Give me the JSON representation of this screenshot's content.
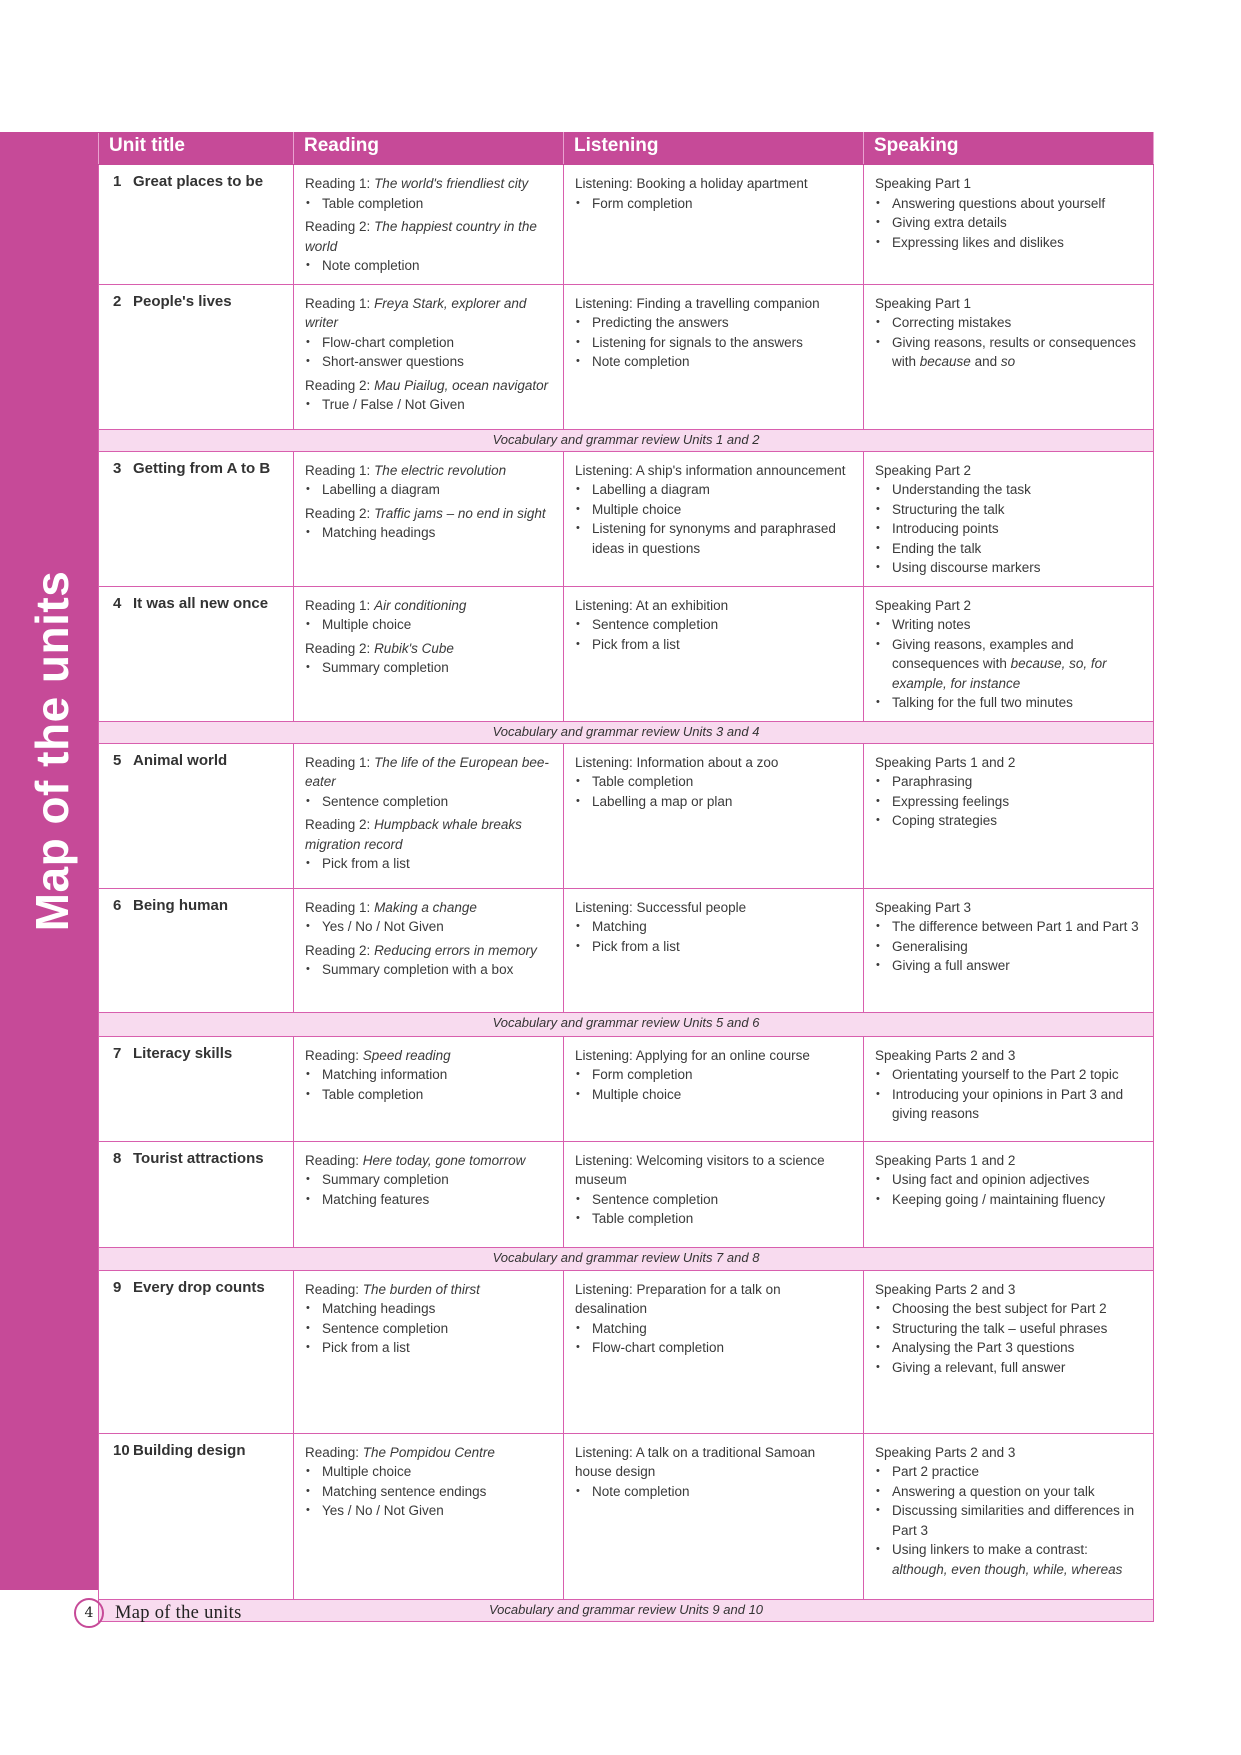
{
  "side_title": "Map of the units",
  "colors": {
    "accent": "#c64a98",
    "border": "#d85fae",
    "vocab_bg": "#f8dbef"
  },
  "headers": [
    "Unit title",
    "Reading",
    "Listening",
    "Speaking"
  ],
  "rows": [
    {
      "type": "unit",
      "num": "1",
      "title": "Great places to be",
      "reading": [
        {
          "h": [
            {
              "t": "Reading 1: "
            },
            {
              "t": "The world's friendliest city",
              "i": true
            }
          ],
          "b": [
            [
              {
                "t": "Table completion"
              }
            ]
          ]
        },
        {
          "h": [
            {
              "t": "Reading 2: "
            },
            {
              "t": "The happiest country in the world",
              "i": true
            }
          ],
          "b": [
            [
              {
                "t": "Note completion"
              }
            ]
          ]
        }
      ],
      "listening": [
        {
          "h": [
            {
              "t": "Listening: Booking a holiday apartment"
            }
          ],
          "b": [
            [
              {
                "t": "Form completion"
              }
            ]
          ]
        }
      ],
      "speaking": [
        {
          "h": [
            {
              "t": "Speaking Part 1"
            }
          ],
          "b": [
            [
              {
                "t": "Answering questions about yourself"
              }
            ],
            [
              {
                "t": "Giving extra details"
              }
            ],
            [
              {
                "t": "Expressing likes and dislikes"
              }
            ]
          ]
        }
      ]
    },
    {
      "type": "unit",
      "num": "2",
      "title": "People's lives",
      "reading": [
        {
          "h": [
            {
              "t": "Reading 1: "
            },
            {
              "t": "Freya Stark, explorer and writer",
              "i": true
            }
          ],
          "b": [
            [
              {
                "t": "Flow-chart completion"
              }
            ],
            [
              {
                "t": "Short-answer questions"
              }
            ]
          ]
        },
        {
          "h": [
            {
              "t": "Reading 2: "
            },
            {
              "t": "Mau Piailug, ocean navigator",
              "i": true
            }
          ],
          "b": [
            [
              {
                "t": "True / False / Not Given"
              }
            ]
          ]
        }
      ],
      "listening": [
        {
          "h": [
            {
              "t": "Listening: Finding a travelling companion"
            }
          ],
          "b": [
            [
              {
                "t": "Predicting the answers"
              }
            ],
            [
              {
                "t": "Listening for signals to the answers"
              }
            ],
            [
              {
                "t": "Note completion"
              }
            ]
          ]
        }
      ],
      "speaking": [
        {
          "h": [
            {
              "t": "Speaking Part 1"
            }
          ],
          "b": [
            [
              {
                "t": "Correcting mistakes"
              }
            ],
            [
              {
                "t": "Giving reasons, results or consequences with "
              },
              {
                "t": "because",
                "i": true
              },
              {
                "t": " and "
              },
              {
                "t": "so",
                "i": true
              }
            ]
          ]
        }
      ]
    },
    {
      "type": "vocab",
      "text": "Vocabulary and grammar review Units 1 and 2"
    },
    {
      "type": "unit",
      "num": "3",
      "title": "Getting from A to B",
      "reading": [
        {
          "h": [
            {
              "t": "Reading 1: "
            },
            {
              "t": "The electric revolution",
              "i": true
            }
          ],
          "b": [
            [
              {
                "t": "Labelling a diagram"
              }
            ]
          ]
        },
        {
          "h": [
            {
              "t": "Reading 2: "
            },
            {
              "t": "Traffic jams – no end in sight",
              "i": true
            }
          ],
          "b": [
            [
              {
                "t": "Matching headings"
              }
            ]
          ]
        }
      ],
      "listening": [
        {
          "h": [
            {
              "t": "Listening: A ship's information announcement"
            }
          ],
          "b": [
            [
              {
                "t": "Labelling a diagram"
              }
            ],
            [
              {
                "t": "Multiple choice"
              }
            ],
            [
              {
                "t": "Listening for synonyms and paraphrased ideas in questions"
              }
            ]
          ]
        }
      ],
      "speaking": [
        {
          "h": [
            {
              "t": "Speaking Part 2"
            }
          ],
          "b": [
            [
              {
                "t": "Understanding the task"
              }
            ],
            [
              {
                "t": "Structuring the talk"
              }
            ],
            [
              {
                "t": "Introducing points"
              }
            ],
            [
              {
                "t": "Ending the talk"
              }
            ],
            [
              {
                "t": "Using discourse markers"
              }
            ]
          ]
        }
      ]
    },
    {
      "type": "unit",
      "num": "4",
      "title": "It was all new once",
      "reading": [
        {
          "h": [
            {
              "t": "Reading 1: "
            },
            {
              "t": "Air conditioning",
              "i": true
            }
          ],
          "b": [
            [
              {
                "t": "Multiple choice"
              }
            ]
          ]
        },
        {
          "h": [
            {
              "t": "Reading 2: "
            },
            {
              "t": "Rubik's Cube",
              "i": true
            }
          ],
          "b": [
            [
              {
                "t": "Summary completion"
              }
            ]
          ]
        }
      ],
      "listening": [
        {
          "h": [
            {
              "t": "Listening: At an exhibition"
            }
          ],
          "b": [
            [
              {
                "t": "Sentence completion"
              }
            ],
            [
              {
                "t": "Pick from a list"
              }
            ]
          ]
        }
      ],
      "speaking": [
        {
          "h": [
            {
              "t": "Speaking Part 2"
            }
          ],
          "b": [
            [
              {
                "t": "Writing notes"
              }
            ],
            [
              {
                "t": "Giving reasons, examples and consequences with "
              },
              {
                "t": "because, so, for example, for instance",
                "i": true
              }
            ],
            [
              {
                "t": "Talking for the full two minutes"
              }
            ]
          ]
        }
      ]
    },
    {
      "type": "vocab",
      "text": "Vocabulary and grammar review Units 3 and 4"
    },
    {
      "type": "unit",
      "num": "5",
      "title": "Animal world",
      "reading": [
        {
          "h": [
            {
              "t": "Reading 1: "
            },
            {
              "t": "The life of the European bee-eater",
              "i": true
            }
          ],
          "b": [
            [
              {
                "t": "Sentence completion"
              }
            ]
          ]
        },
        {
          "h": [
            {
              "t": "Reading 2: "
            },
            {
              "t": "Humpback whale breaks migration record",
              "i": true
            }
          ],
          "b": [
            [
              {
                "t": "Pick from a list"
              }
            ]
          ]
        }
      ],
      "listening": [
        {
          "h": [
            {
              "t": "Listening: Information about a zoo"
            }
          ],
          "b": [
            [
              {
                "t": "Table completion"
              }
            ],
            [
              {
                "t": "Labelling a map or plan"
              }
            ]
          ]
        }
      ],
      "speaking": [
        {
          "h": [
            {
              "t": "Speaking Parts 1 and 2"
            }
          ],
          "b": [
            [
              {
                "t": "Paraphrasing"
              }
            ],
            [
              {
                "t": "Expressing feelings"
              }
            ],
            [
              {
                "t": "Coping strategies"
              }
            ]
          ]
        }
      ]
    },
    {
      "type": "unit",
      "num": "6",
      "title": "Being human",
      "reading": [
        {
          "h": [
            {
              "t": "Reading 1: "
            },
            {
              "t": "Making a change",
              "i": true
            }
          ],
          "b": [
            [
              {
                "t": "Yes / No / Not Given"
              }
            ]
          ]
        },
        {
          "h": [
            {
              "t": "Reading 2: "
            },
            {
              "t": "Reducing errors in memory",
              "i": true
            }
          ],
          "b": [
            [
              {
                "t": "Summary completion with a box"
              }
            ]
          ]
        }
      ],
      "listening": [
        {
          "h": [
            {
              "t": "Listening: Successful people"
            }
          ],
          "b": [
            [
              {
                "t": "Matching"
              }
            ],
            [
              {
                "t": "Pick from a list"
              }
            ]
          ]
        }
      ],
      "speaking": [
        {
          "h": [
            {
              "t": "Speaking Part 3"
            }
          ],
          "b": [
            [
              {
                "t": "The difference between Part 1 and Part 3"
              }
            ],
            [
              {
                "t": "Generalising"
              }
            ],
            [
              {
                "t": "Giving a full answer"
              }
            ]
          ]
        }
      ]
    },
    {
      "type": "vocab",
      "text": "Vocabulary and grammar review Units 5 and 6"
    },
    {
      "type": "unit",
      "num": "7",
      "title": "Literacy skills",
      "reading": [
        {
          "h": [
            {
              "t": "Reading: "
            },
            {
              "t": "Speed reading",
              "i": true
            }
          ],
          "b": [
            [
              {
                "t": "Matching information"
              }
            ],
            [
              {
                "t": "Table completion"
              }
            ]
          ]
        }
      ],
      "listening": [
        {
          "h": [
            {
              "t": "Listening: Applying for an online course"
            }
          ],
          "b": [
            [
              {
                "t": "Form completion"
              }
            ],
            [
              {
                "t": "Multiple choice"
              }
            ]
          ]
        }
      ],
      "speaking": [
        {
          "h": [
            {
              "t": "Speaking Parts 2 and 3"
            }
          ],
          "b": [
            [
              {
                "t": "Orientating yourself to the Part 2 topic"
              }
            ],
            [
              {
                "t": "Introducing your opinions in Part 3 and giving reasons"
              }
            ]
          ]
        }
      ]
    },
    {
      "type": "unit",
      "num": "8",
      "title": "Tourist attractions",
      "reading": [
        {
          "h": [
            {
              "t": "Reading: "
            },
            {
              "t": "Here today, gone tomorrow",
              "i": true
            }
          ],
          "b": [
            [
              {
                "t": "Summary completion"
              }
            ],
            [
              {
                "t": "Matching features"
              }
            ]
          ]
        }
      ],
      "listening": [
        {
          "h": [
            {
              "t": "Listening: Welcoming visitors to a science museum"
            }
          ],
          "b": [
            [
              {
                "t": "Sentence completion"
              }
            ],
            [
              {
                "t": "Table completion"
              }
            ]
          ]
        }
      ],
      "speaking": [
        {
          "h": [
            {
              "t": "Speaking Parts 1 and 2"
            }
          ],
          "b": [
            [
              {
                "t": "Using fact and opinion adjectives"
              }
            ],
            [
              {
                "t": "Keeping going / maintaining fluency"
              }
            ]
          ]
        }
      ]
    },
    {
      "type": "vocab",
      "text": "Vocabulary and grammar review Units 7 and 8"
    },
    {
      "type": "unit",
      "num": "9",
      "title": "Every drop counts",
      "reading": [
        {
          "h": [
            {
              "t": "Reading: "
            },
            {
              "t": "The burden of thirst",
              "i": true
            }
          ],
          "b": [
            [
              {
                "t": "Matching headings"
              }
            ],
            [
              {
                "t": "Sentence completion"
              }
            ],
            [
              {
                "t": "Pick from a list"
              }
            ]
          ]
        }
      ],
      "listening": [
        {
          "h": [
            {
              "t": "Listening: Preparation for a talk on desalination"
            }
          ],
          "b": [
            [
              {
                "t": "Matching"
              }
            ],
            [
              {
                "t": "Flow-chart completion"
              }
            ]
          ]
        }
      ],
      "speaking": [
        {
          "h": [
            {
              "t": "Speaking Parts 2 and 3"
            }
          ],
          "b": [
            [
              {
                "t": "Choosing the best subject for Part 2"
              }
            ],
            [
              {
                "t": "Structuring the talk – useful phrases"
              }
            ],
            [
              {
                "t": "Analysing the Part 3 questions"
              }
            ],
            [
              {
                "t": "Giving a relevant, full answer"
              }
            ]
          ]
        }
      ]
    },
    {
      "type": "unit",
      "num": "10",
      "title": "Building design",
      "reading": [
        {
          "h": [
            {
              "t": "Reading: "
            },
            {
              "t": "The Pompidou Centre",
              "i": true
            }
          ],
          "b": [
            [
              {
                "t": "Multiple choice"
              }
            ],
            [
              {
                "t": "Matching sentence endings"
              }
            ],
            [
              {
                "t": "Yes / No / Not Given"
              }
            ]
          ]
        }
      ],
      "listening": [
        {
          "h": [
            {
              "t": "Listening: A talk on a traditional Samoan house design"
            }
          ],
          "b": [
            [
              {
                "t": "Note completion"
              }
            ]
          ]
        }
      ],
      "speaking": [
        {
          "h": [
            {
              "t": "Speaking Parts 2 and 3"
            }
          ],
          "b": [
            [
              {
                "t": "Part 2 practice"
              }
            ],
            [
              {
                "t": "Answering a question on your talk"
              }
            ],
            [
              {
                "t": "Discussing similarities and differences in Part 3"
              }
            ],
            [
              {
                "t": "Using linkers to make a contrast: "
              },
              {
                "t": "although, even though, while, whereas",
                "i": true
              }
            ]
          ]
        }
      ]
    },
    {
      "type": "vocab",
      "text": "Vocabulary and grammar review Units 9 and 10"
    }
  ],
  "footer": {
    "page_number": "4",
    "text": "Map of the units"
  }
}
